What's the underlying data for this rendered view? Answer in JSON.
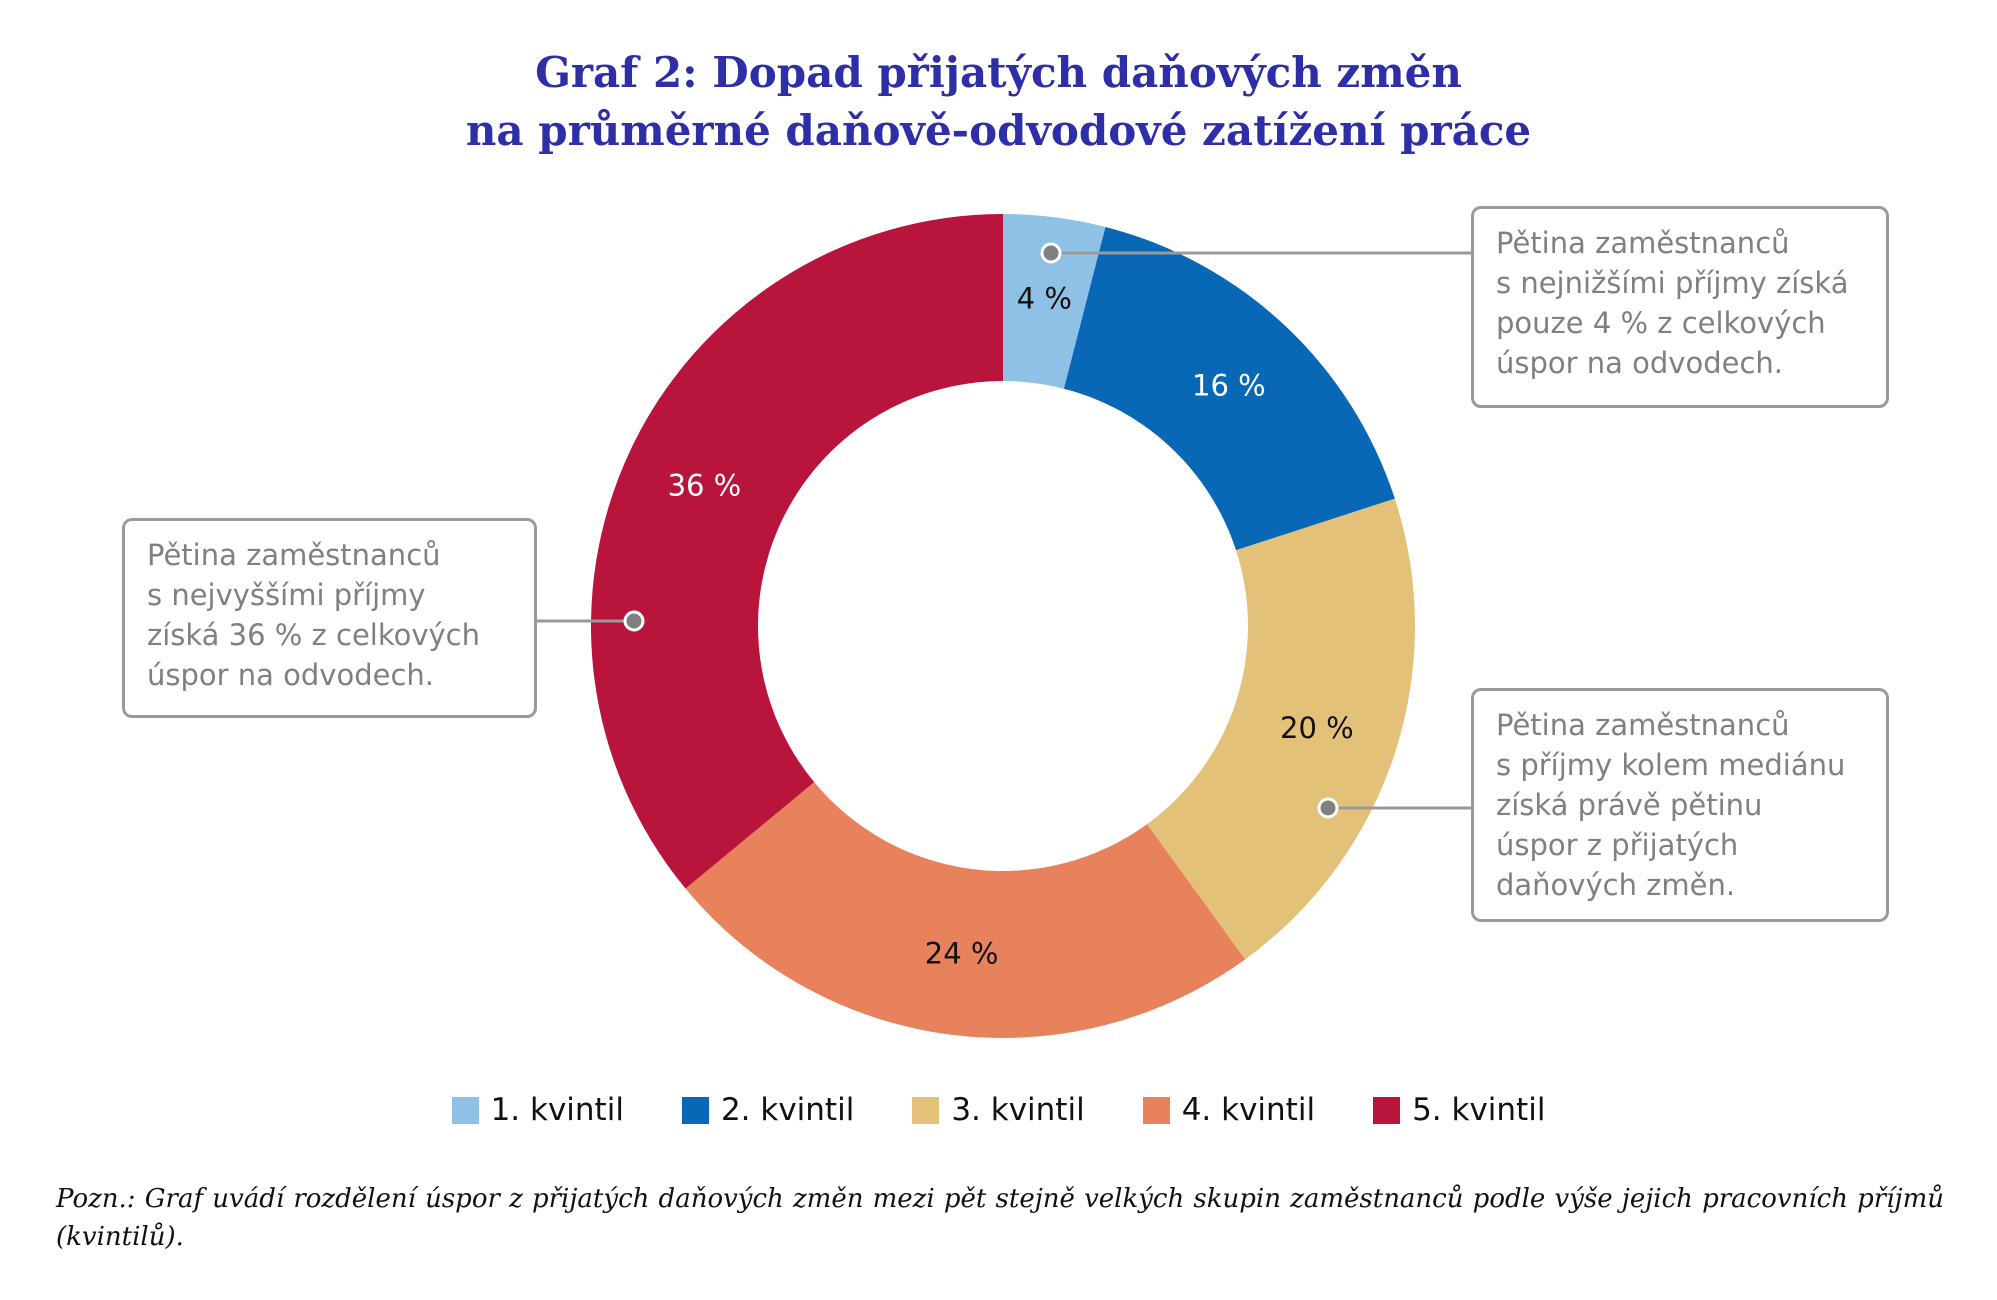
{
  "title": {
    "line1": "Graf 2: Dopad přijatých daňových změn",
    "line2": "na průměrné daňově-odvodové zatížení práce"
  },
  "chart_data": {
    "type": "pie",
    "variant": "donut",
    "title": "Graf 2: Dopad přijatých daňových změn na průměrné daňově-odvodové zatížení práce",
    "categories": [
      "1. kvintil",
      "2. kvintil",
      "3. kvintil",
      "4. kvintil",
      "5. kvintil"
    ],
    "values": [
      4,
      16,
      20,
      24,
      36
    ],
    "labels": [
      "4 %",
      "16 %",
      "20 %",
      "24 %",
      "36 %"
    ],
    "colors": [
      "#8fc1e6",
      "#0868b6",
      "#e4c178",
      "#e8825c",
      "#b9143c"
    ],
    "label_colors": [
      "#111111",
      "#ffffff",
      "#111111",
      "#111111",
      "#ffffff"
    ],
    "legend_position": "bottom"
  },
  "callouts": {
    "top_right": [
      "Pětina zaměstnanců",
      "s nejnižšími příjmy získá",
      "pouze 4 % z celkových",
      "úspor na odvodech."
    ],
    "left": [
      "Pětina zaměstnanců",
      "s nejvyššími příjmy",
      "získá 36 % z celkových",
      "úspor na odvodech."
    ],
    "bottom_right": [
      "Pětina zaměstnanců",
      "s příjmy kolem mediánu",
      "získá právě pětinu",
      "úspor z přijatých",
      "daňových změn."
    ]
  },
  "legend": [
    {
      "label": "1. kvintil",
      "color": "#8fc1e6"
    },
    {
      "label": "2. kvintil",
      "color": "#0868b6"
    },
    {
      "label": "3. kvintil",
      "color": "#e4c178"
    },
    {
      "label": "4. kvintil",
      "color": "#e8825c"
    },
    {
      "label": "5. kvintil",
      "color": "#b9143c"
    }
  ],
  "note": "Pozn.: Graf uvádí rozdělení úspor z přijatých daňových změn mezi pět stejně velkých skupin zaměstnanců podle výše jejich pracovních příjmů (kvintilů)."
}
